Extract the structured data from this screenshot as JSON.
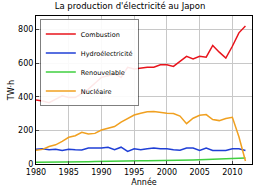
{
  "chart_data": {
    "type": "line",
    "title": "La production d'électricité au Japon",
    "x_label": "Année",
    "y_label": "TW·h",
    "x": [
      1980,
      1981,
      1982,
      1983,
      1984,
      1985,
      1986,
      1987,
      1988,
      1989,
      1990,
      1991,
      1992,
      1993,
      1994,
      1995,
      1996,
      1997,
      1998,
      1999,
      2000,
      2001,
      2002,
      2003,
      2004,
      2005,
      2006,
      2007,
      2008,
      2009,
      2010,
      2011,
      2012
    ],
    "series": [
      {
        "name": "Combustion",
        "color": "#e8141c",
        "values": [
          380,
          375,
          365,
          385,
          405,
          395,
          395,
          420,
          445,
          480,
          515,
          525,
          535,
          515,
          575,
          565,
          570,
          575,
          575,
          590,
          590,
          580,
          610,
          640,
          625,
          640,
          635,
          705,
          665,
          630,
          700,
          780,
          820
        ]
      },
      {
        "name": "Hydroélectricité",
        "color": "#1f3fd6",
        "values": [
          88,
          90,
          85,
          88,
          80,
          88,
          85,
          83,
          95,
          95,
          95,
          100,
          85,
          100,
          75,
          90,
          85,
          90,
          95,
          90,
          90,
          85,
          82,
          95,
          95,
          80,
          95,
          80,
          80,
          80,
          90,
          90,
          80
        ]
      },
      {
        "name": "Renouvelable",
        "color": "#3fcf3f",
        "values": [
          10,
          10,
          11,
          11,
          12,
          12,
          13,
          13,
          14,
          15,
          15,
          16,
          16,
          17,
          18,
          18,
          19,
          20,
          20,
          21,
          22,
          22,
          23,
          24,
          24,
          25,
          26,
          27,
          28,
          29,
          30,
          32,
          35
        ]
      },
      {
        "name": "Nucléaire",
        "color": "#f0a020",
        "values": [
          82,
          87,
          104,
          114,
          135,
          159,
          168,
          188,
          178,
          182,
          202,
          213,
          223,
          249,
          269,
          291,
          302,
          310,
          312,
          306,
          302,
          300,
          285,
          240,
          272,
          290,
          294,
          264,
          258,
          270,
          278,
          162,
          18
        ]
      }
    ],
    "xlim": [
      1980,
      2013
    ],
    "xticks": [
      1980,
      1985,
      1990,
      1995,
      2000,
      2005,
      2010
    ],
    "ylim": [
      0,
      880
    ],
    "yticks": [
      0,
      200,
      400,
      600,
      800
    ],
    "grid": true,
    "legend": "top-left"
  }
}
